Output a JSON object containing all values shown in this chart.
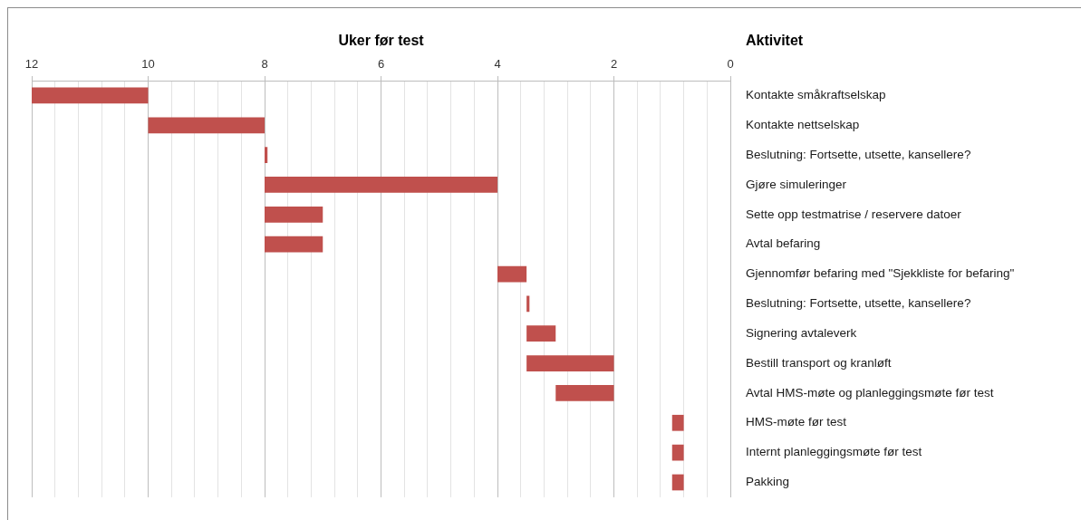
{
  "chart_data": {
    "type": "bar",
    "orientation": "horizontal",
    "xlabel": "Uker før test",
    "ylabel": "Aktivitet",
    "categories": [
      "Kontakte småkraftselskap",
      "Kontakte nettselskap",
      "Beslutning: Fortsette, utsette, kansellere?",
      "Gjøre simuleringer",
      "Sette opp testmatrise / reservere datoer",
      "Avtal befaring",
      "Gjennomfør befaring med \"Sjekkliste for befaring\"",
      "Beslutning: Fortsette, utsette, kansellere?",
      "Signering avtaleverk",
      "Bestill transport og kranløft",
      "Avtal HMS-møte og planleggingsmøte før test",
      "HMS-møte før test",
      "Internt planleggingsmøte før test",
      "Pakking"
    ],
    "base": [
      10,
      8,
      7.95,
      4,
      7,
      7,
      3.5,
      3.45,
      3,
      2,
      2,
      0.8,
      0.8,
      0.8
    ],
    "values": [
      2,
      2,
      0.05,
      4,
      1,
      1,
      0.5,
      0.05,
      0.5,
      1.5,
      1,
      0.2,
      0.2,
      0.2
    ],
    "color": "#c0504d",
    "xlim": [
      12,
      0
    ],
    "xticks": [
      12,
      {
        "value": 11.6,
        "label": null
      },
      {
        "value": 11.2,
        "label": null
      },
      {
        "value": 10.8,
        "label": null
      },
      {
        "value": 10.4,
        "label": null
      },
      10,
      {
        "value": 9.6,
        "label": null
      },
      {
        "value": 9.2,
        "label": null
      },
      {
        "value": 8.8,
        "label": null
      },
      {
        "value": 8.4,
        "label": null
      },
      8,
      {
        "value": 7.6,
        "label": null
      },
      {
        "value": 7.2,
        "label": null
      },
      {
        "value": 6.8,
        "label": null
      },
      {
        "value": 6.4,
        "label": null
      },
      6,
      {
        "value": 5.6,
        "label": null
      },
      {
        "value": 5.2,
        "label": null
      },
      {
        "value": 4.8,
        "label": null
      },
      {
        "value": 4.4,
        "label": null
      },
      4,
      {
        "value": 3.6,
        "label": null
      },
      {
        "value": 3.2,
        "label": null
      },
      {
        "value": 2.8,
        "label": null
      },
      {
        "value": 2.4,
        "label": null
      },
      2,
      {
        "value": 1.6,
        "label": null
      },
      {
        "value": 1.2,
        "label": null
      },
      {
        "value": 0.8,
        "label": null
      },
      {
        "value": 0.4,
        "label": null
      },
      0
    ],
    "grid": "x"
  }
}
